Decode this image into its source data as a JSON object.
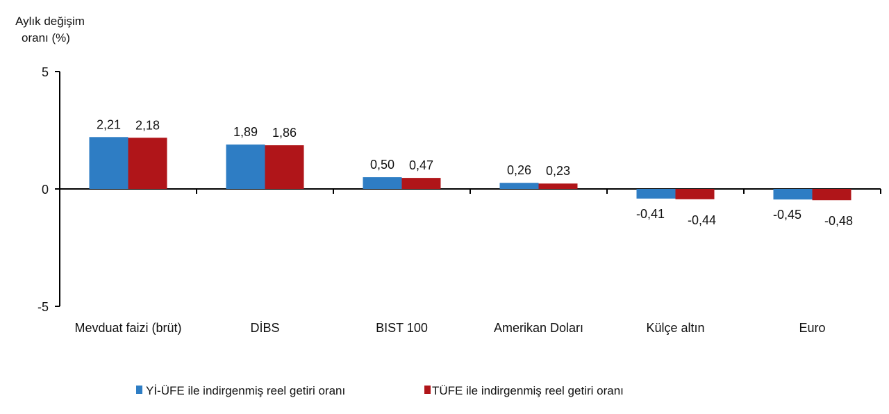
{
  "chart_data": {
    "type": "bar",
    "title": "",
    "ylabel_lines": [
      "Aylık değişim",
      "oranı (%)"
    ],
    "xlabel": "",
    "ylim": [
      -5,
      5
    ],
    "yticks": [
      5,
      0,
      -5
    ],
    "grid": false,
    "legend_position": "bottom",
    "categories": [
      "Mevduat faizi (brüt)",
      "DİBS",
      "BIST 100",
      "Amerikan Doları",
      "Külçe altın",
      "Euro"
    ],
    "series": [
      {
        "name": "Yİ-ÜFE ile indirgenmiş reel getiri oranı",
        "color": "#2e7dc4",
        "values": [
          2.21,
          1.89,
          0.5,
          0.26,
          -0.41,
          -0.45
        ],
        "labels": [
          "2,21",
          "1,89",
          "0,50",
          "0,26",
          "-0,41",
          "-0,45"
        ]
      },
      {
        "name": "TÜFE ile indirgenmiş reel getiri oranı",
        "color": "#b01519",
        "values": [
          2.18,
          1.86,
          0.47,
          0.23,
          -0.44,
          -0.48
        ],
        "labels": [
          "2,18",
          "1,86",
          "0,47",
          "0,23",
          "-0,44",
          "-0,48"
        ]
      }
    ]
  }
}
